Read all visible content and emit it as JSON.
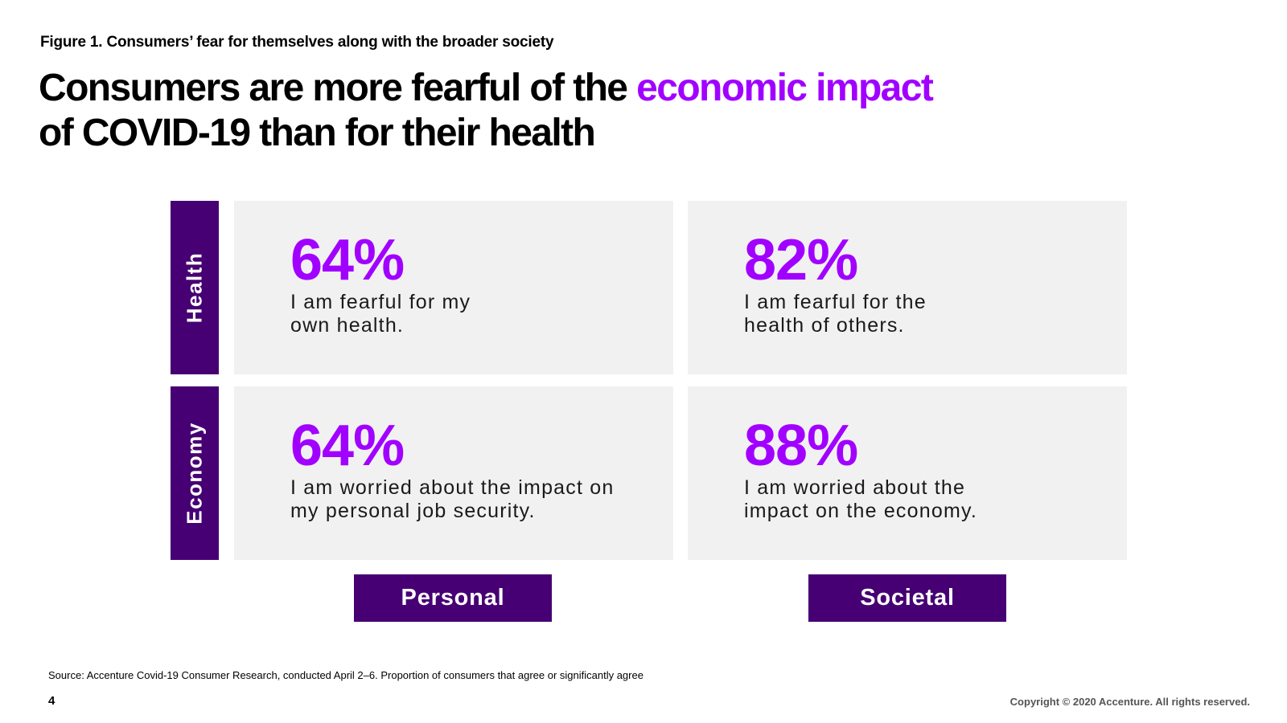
{
  "figure_label": "Figure 1. Consumers’ fear for themselves along with the broader society",
  "headline": {
    "part1": "Consumers are more fearful of the ",
    "accent": "economic impact",
    "part2": "of COVID-19 than for their health"
  },
  "rows": [
    {
      "label": "Health"
    },
    {
      "label": "Economy"
    }
  ],
  "columns": [
    {
      "label": "Personal"
    },
    {
      "label": "Societal"
    }
  ],
  "cells": {
    "health_personal": {
      "value": "64%",
      "text": "I am fearful for my own health."
    },
    "health_societal": {
      "value": "82%",
      "text": "I am fearful for the health of others."
    },
    "economy_personal": {
      "value": "64%",
      "text": "I am worried about the impact on my personal job security."
    },
    "economy_societal": {
      "value": "88%",
      "text": "I am worried about the impact on the economy."
    }
  },
  "footer": {
    "source": "Source: Accenture Covid-19 Consumer Research, conducted April 2–6. Proportion of consumers that agree or significantly agree",
    "page_number": "4",
    "copyright": "Copyright © 2020 Accenture. All rights reserved."
  },
  "colors": {
    "accent": "#a100ff",
    "label_bg": "#460073",
    "card_bg": "#f1f1f1"
  }
}
